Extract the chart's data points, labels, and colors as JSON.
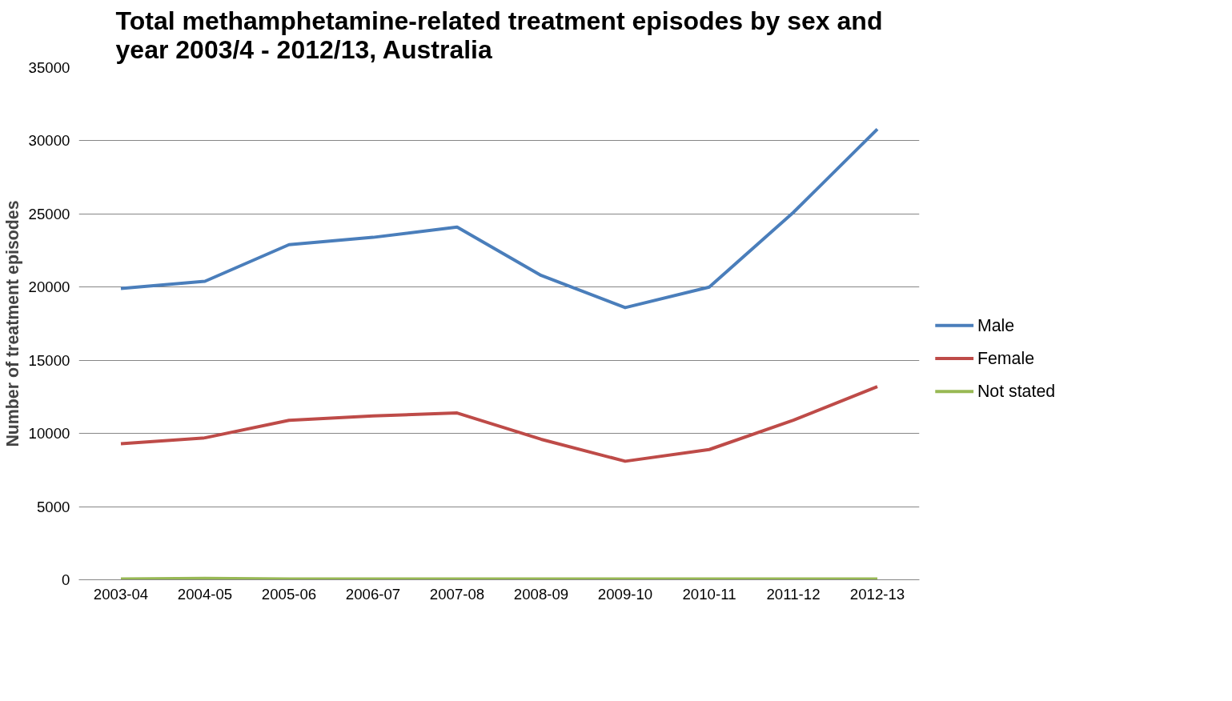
{
  "chart_data": {
    "type": "line",
    "title": "Total methamphetamine-related treatment episodes by sex and year 2003/4 - 2012/13, Australia",
    "ylabel": "Number of treatment episodes",
    "categories": [
      "2003-04",
      "2004-05",
      "2005-06",
      "2006-07",
      "2007-08",
      "2008-09",
      "2009-10",
      "2010-11",
      "2011-12",
      "2012-13"
    ],
    "series": [
      {
        "name": "Male",
        "color": "#4a7ebb",
        "values": [
          19900,
          20400,
          22900,
          23400,
          24100,
          20800,
          18600,
          20000,
          25100,
          30800
        ]
      },
      {
        "name": "Female",
        "color": "#be4b48",
        "values": [
          9300,
          9700,
          10900,
          11200,
          11400,
          9600,
          8100,
          8900,
          10900,
          13200
        ]
      },
      {
        "name": "Not stated",
        "color": "#98b954",
        "values": [
          50,
          100,
          50,
          50,
          50,
          50,
          50,
          50,
          50,
          50
        ]
      }
    ],
    "ylim": [
      0,
      35000
    ],
    "yticks": [
      0,
      5000,
      10000,
      15000,
      20000,
      25000,
      30000,
      35000
    ],
    "grid": "y",
    "legend": "right",
    "marker": "none",
    "line_style": "solid"
  }
}
